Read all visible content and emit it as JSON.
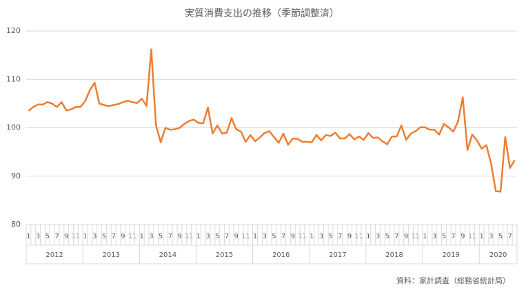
{
  "chart_data": {
    "type": "line",
    "title": "実質消費支出の推移（季節調整済）",
    "source": "資料：家計調査（総務省統計局）",
    "categories": [
      "1",
      null,
      "3",
      null,
      "5",
      null,
      "7",
      null,
      "9",
      null,
      "11",
      null,
      "1",
      null,
      "3",
      null,
      "5",
      null,
      "7",
      null,
      "9",
      null,
      "11",
      null,
      "1",
      null,
      "3",
      null,
      "5",
      null,
      "7",
      null,
      "9",
      null,
      "11",
      null,
      "1",
      null,
      "3",
      null,
      "5",
      null,
      "7",
      null,
      "9",
      null,
      "11",
      null,
      "1",
      null,
      "3",
      null,
      "5",
      null,
      "7",
      null,
      "9",
      null,
      "11",
      null,
      "1",
      null,
      "3",
      null,
      "5",
      null,
      "7",
      null,
      "9",
      null,
      "11",
      null,
      "1",
      null,
      "3",
      null,
      "5",
      null,
      "7",
      null,
      "9",
      null,
      "11",
      null,
      "1",
      null,
      "3",
      null,
      "5",
      null,
      "7",
      null,
      "9",
      null,
      "11",
      null,
      "1",
      null,
      "3",
      null,
      "5",
      null,
      "7",
      null
    ],
    "years": [
      "2012",
      "2013",
      "2014",
      "2015",
      "2016",
      "2017",
      "2018",
      "2019",
      "2020"
    ],
    "series": [
      {
        "color": "#ED7D31",
        "values": [
          103.5,
          104.3,
          104.8,
          104.8,
          105.3,
          105.0,
          104.3,
          105.3,
          103.6,
          103.8,
          104.3,
          104.3,
          105.5,
          107.8,
          109.3,
          105.0,
          104.7,
          104.5,
          104.7,
          104.9,
          105.3,
          105.6,
          105.3,
          105.1,
          106.0,
          104.5,
          116.2,
          100.5,
          97.0,
          100.0,
          99.6,
          99.7,
          100.0,
          100.8,
          101.4,
          101.7,
          101.0,
          100.9,
          104.2,
          98.8,
          100.5,
          98.8,
          99.0,
          102.0,
          99.7,
          99.2,
          97.1,
          98.5,
          97.2,
          98.0,
          98.9,
          99.3,
          98.1,
          96.9,
          98.8,
          96.5,
          97.8,
          97.7,
          97.1,
          97.1,
          97.0,
          98.5,
          97.4,
          98.5,
          98.3,
          99.0,
          97.8,
          97.8,
          98.7,
          97.6,
          98.2,
          97.5,
          98.9,
          97.9,
          98.0,
          97.2,
          96.6,
          98.2,
          98.2,
          100.5,
          97.5,
          98.8,
          99.3,
          100.1,
          100.1,
          99.6,
          99.6,
          98.6,
          100.8,
          100.1,
          99.2,
          101.3,
          106.3,
          95.4,
          98.6,
          97.4,
          95.7,
          96.4,
          92.6,
          86.9,
          86.8,
          98.1,
          91.7,
          93.3
        ]
      }
    ],
    "ylim": [
      80,
      120
    ],
    "yticks": [
      80,
      90,
      100,
      110,
      120
    ],
    "grid": true
  }
}
